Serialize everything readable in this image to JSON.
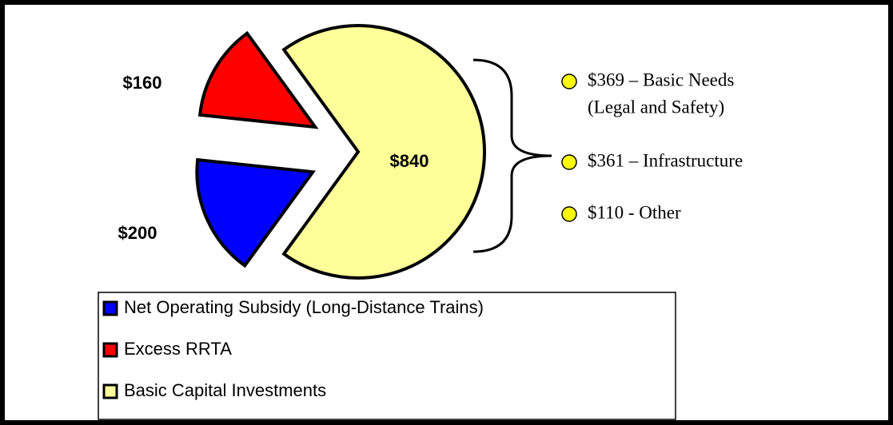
{
  "chart_data": {
    "type": "pie",
    "categories": [
      "Net Operating Subsidy (Long-Distance Trains)",
      "Excess RRTA",
      "Basic Capital Investments"
    ],
    "values": [
      200,
      160,
      840
    ],
    "value_labels": [
      "$200",
      "$160",
      "$840"
    ],
    "colors": [
      "#0000ff",
      "#ff0000",
      "#ffff99"
    ],
    "annotations": [
      {
        "lines": [
          "$369 – Basic Needs",
          "(Legal and Safety)"
        ]
      },
      {
        "lines": [
          "$361 – Infrastructure"
        ]
      },
      {
        "lines": [
          "$110 - Other"
        ]
      }
    ]
  }
}
